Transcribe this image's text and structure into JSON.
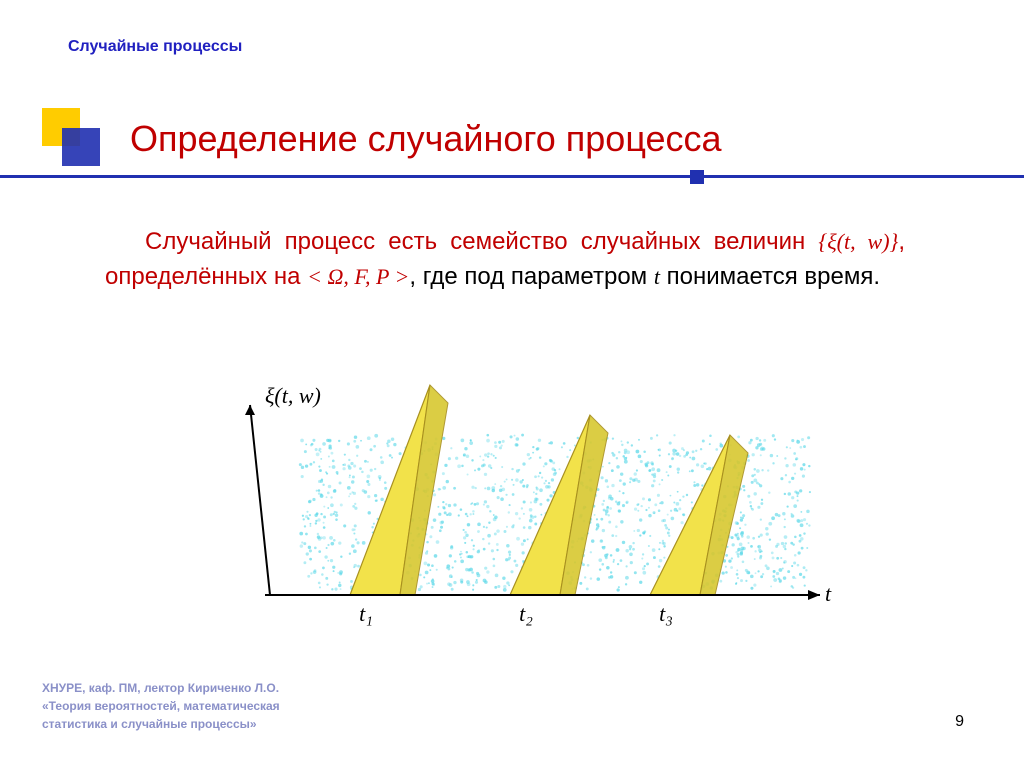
{
  "header": {
    "label": "Случайные процессы"
  },
  "title": "Определение случайного процесса",
  "body": {
    "part1_red": "Случайный процесс есть семейство случайных величин ",
    "formula1": "{ξ(t, w)}",
    "part2_red": ", определённых на ",
    "formula2": "< Ω, F, P >",
    "part3": ", где под параметром ",
    "formula3": "t",
    "part4": " понимается время."
  },
  "diagram": {
    "y_label": "ξ(t, w)",
    "x_label": "t",
    "ticks": [
      "t₁",
      "t₂",
      "t₃"
    ],
    "cone_positions": [
      130,
      290,
      430
    ],
    "cone_heights": [
      210,
      180,
      160
    ],
    "cone_color": "#f2e24a",
    "cone_stroke": "#a89020",
    "noise_color": "#5dd8e8",
    "axis_color": "#000000",
    "bg": "#ffffff"
  },
  "footer": {
    "line1": "ХНУРЕ, каф. ПМ, лектор Кириченко Л.О.",
    "line2": "«Теория вероятностей, математическая",
    "line3": "статистика и случайные процессы»"
  },
  "page_number": "9"
}
